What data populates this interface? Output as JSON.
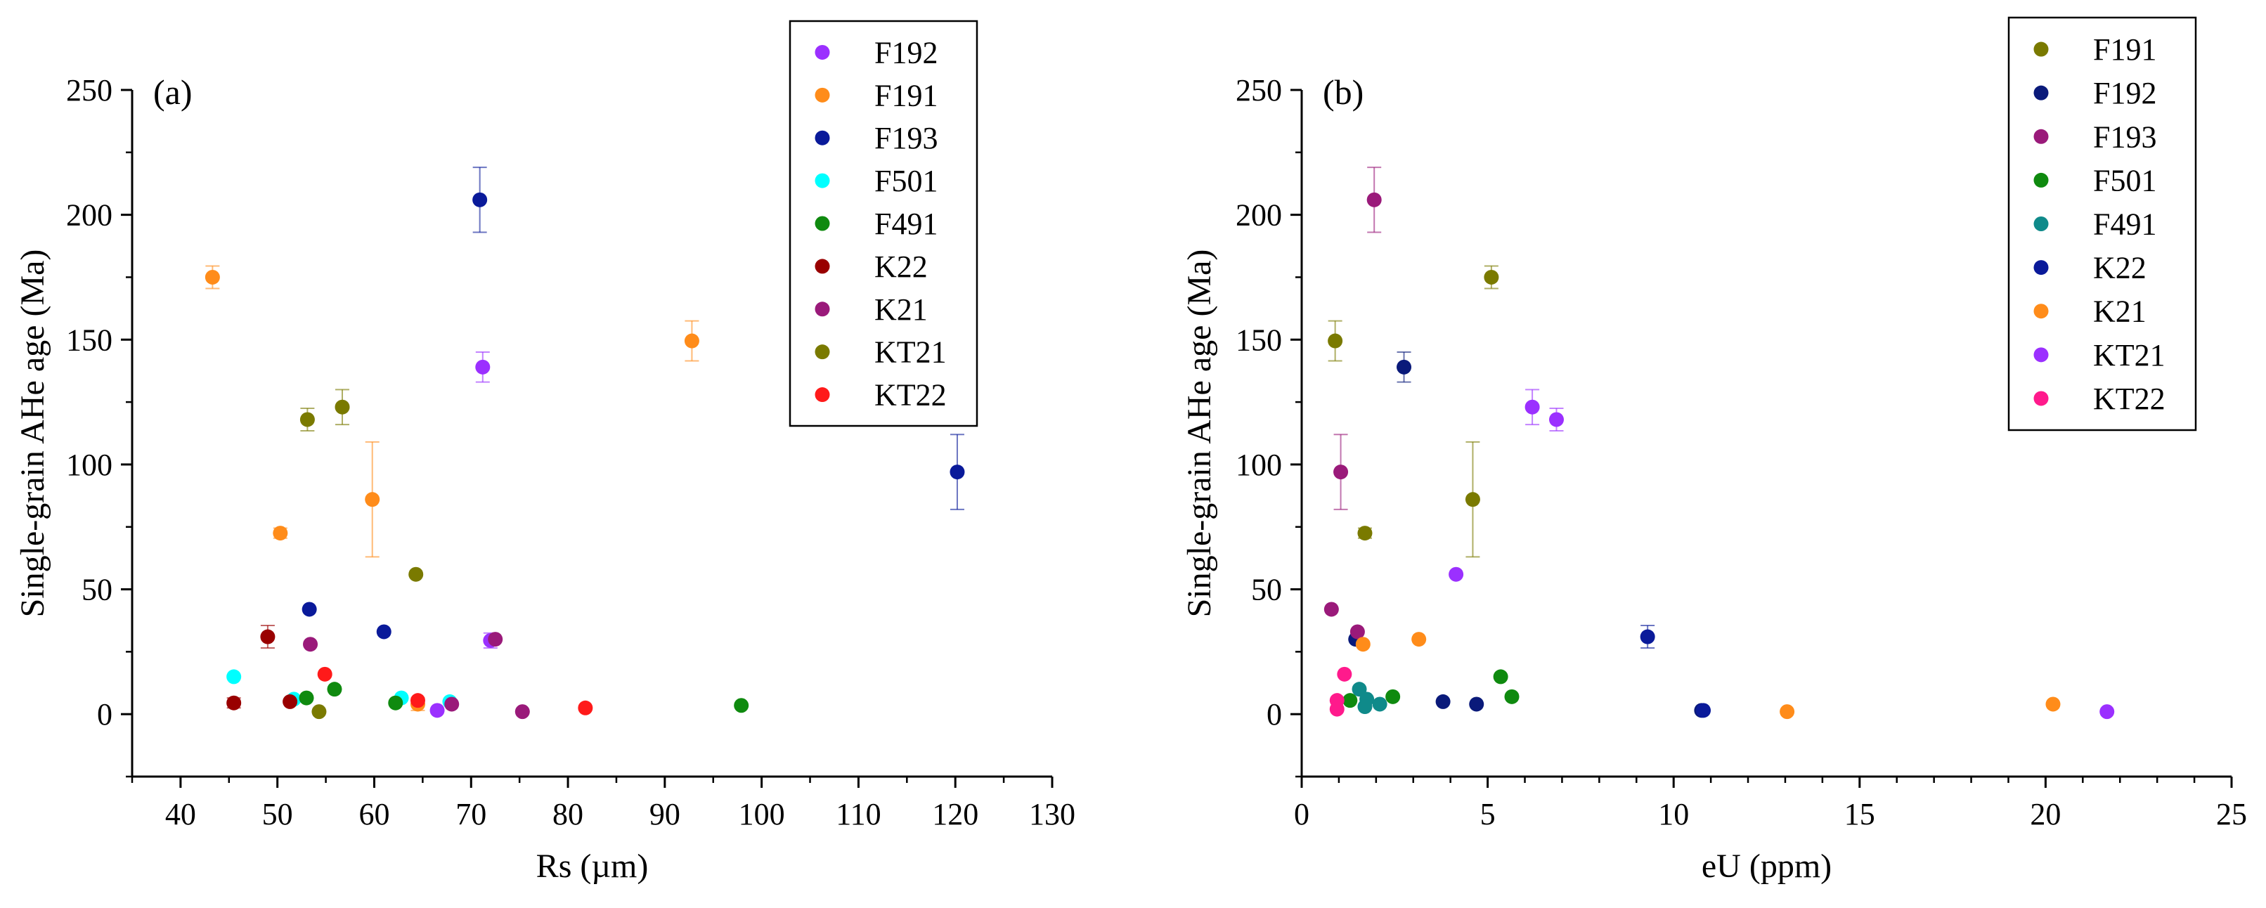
{
  "chart_data": [
    {
      "type": "scatter",
      "panel_label": "(a)",
      "xlabel": "Rs (µm)",
      "ylabel": "Single-grain AHe age (Ma)",
      "xlim": [
        35,
        130
      ],
      "ylim": [
        -25,
        250
      ],
      "xticks": [
        "40",
        "50",
        "60",
        "70",
        "80",
        "90",
        "100",
        "110",
        "120",
        "130"
      ],
      "yticks": [
        "0",
        "50",
        "100",
        "150",
        "200",
        "250"
      ],
      "legend_position": "top-right",
      "series": [
        {
          "name": "F192",
          "color": "#9b30ff",
          "points": [
            {
              "x": 71.2,
              "y": 139,
              "err": 6
            },
            {
              "x": 72.0,
              "y": 29.5,
              "err": 3
            },
            {
              "x": 66.5,
              "y": 1.5,
              "err": 0
            }
          ]
        },
        {
          "name": "F191",
          "color": "#ff8c1a",
          "points": [
            {
              "x": 43.3,
              "y": 175,
              "err": 4.5
            },
            {
              "x": 92.8,
              "y": 149.5,
              "err": 8
            },
            {
              "x": 50.3,
              "y": 72.5,
              "err": 2
            },
            {
              "x": 59.8,
              "y": 86,
              "err": 23
            },
            {
              "x": 64.5,
              "y": 4,
              "err": 2.5
            }
          ]
        },
        {
          "name": "F193",
          "color": "#0a1a9a",
          "points": [
            {
              "x": 70.9,
              "y": 206,
              "err": 13
            },
            {
              "x": 120.2,
              "y": 97,
              "err": 15
            },
            {
              "x": 53.3,
              "y": 42,
              "err": 0
            },
            {
              "x": 61.0,
              "y": 33,
              "err": 0
            }
          ]
        },
        {
          "name": "F501",
          "color": "#00ffff",
          "points": [
            {
              "x": 45.5,
              "y": 15,
              "err": 0
            },
            {
              "x": 51.7,
              "y": 6,
              "err": 0
            },
            {
              "x": 62.8,
              "y": 6.5,
              "err": 0
            },
            {
              "x": 67.8,
              "y": 5,
              "err": 0
            }
          ]
        },
        {
          "name": "F491",
          "color": "#0f8a0f",
          "points": [
            {
              "x": 53.0,
              "y": 6.5,
              "err": 0
            },
            {
              "x": 55.9,
              "y": 10,
              "err": 0
            },
            {
              "x": 62.2,
              "y": 4.5,
              "err": 0
            },
            {
              "x": 97.9,
              "y": 3.5,
              "err": 0
            }
          ]
        },
        {
          "name": "K22",
          "color": "#990000",
          "points": [
            {
              "x": 49.0,
              "y": 31,
              "err": 4.5
            },
            {
              "x": 45.5,
              "y": 4.5,
              "err": 2
            },
            {
              "x": 51.3,
              "y": 5,
              "err": 0
            }
          ]
        },
        {
          "name": "K21",
          "color": "#9a1a7a",
          "points": [
            {
              "x": 53.4,
              "y": 28,
              "err": 0
            },
            {
              "x": 72.5,
              "y": 30,
              "err": 0
            },
            {
              "x": 68.0,
              "y": 4,
              "err": 0
            },
            {
              "x": 75.3,
              "y": 1,
              "err": 0
            }
          ]
        },
        {
          "name": "KT21",
          "color": "#7a7a00",
          "points": [
            {
              "x": 53.1,
              "y": 118,
              "err": 4.5
            },
            {
              "x": 56.7,
              "y": 123,
              "err": 7
            },
            {
              "x": 64.3,
              "y": 56,
              "err": 0
            },
            {
              "x": 54.3,
              "y": 1,
              "err": 0
            }
          ]
        },
        {
          "name": "KT22",
          "color": "#ff1a1a",
          "points": [
            {
              "x": 54.9,
              "y": 16,
              "err": 0
            },
            {
              "x": 64.5,
              "y": 5.5,
              "err": 0
            },
            {
              "x": 81.8,
              "y": 2.5,
              "err": 0
            }
          ]
        }
      ]
    },
    {
      "type": "scatter",
      "panel_label": "(b)",
      "xlabel": "eU (ppm)",
      "ylabel": "Single-grain AHe age (Ma)",
      "xlim": [
        0,
        25
      ],
      "ylim": [
        -25,
        250
      ],
      "xticks": [
        "0",
        "5",
        "10",
        "15",
        "20",
        "25"
      ],
      "yticks": [
        "0",
        "50",
        "100",
        "150",
        "200",
        "250"
      ],
      "legend_position": "top-right",
      "series": [
        {
          "name": "F191",
          "color": "#7a7a00",
          "points": [
            {
              "x": 5.1,
              "y": 175,
              "err": 4.5
            },
            {
              "x": 0.9,
              "y": 149.5,
              "err": 8
            },
            {
              "x": 4.6,
              "y": 86,
              "err": 23
            },
            {
              "x": 1.7,
              "y": 72.5,
              "err": 2
            }
          ]
        },
        {
          "name": "F192",
          "color": "#0a1a7a",
          "points": [
            {
              "x": 2.75,
              "y": 139,
              "err": 6
            },
            {
              "x": 1.45,
              "y": 30,
              "err": 0
            },
            {
              "x": 3.8,
              "y": 5,
              "err": 0
            },
            {
              "x": 4.7,
              "y": 4,
              "err": 0
            },
            {
              "x": 10.75,
              "y": 1.5,
              "err": 0
            }
          ]
        },
        {
          "name": "F193",
          "color": "#9a1a7a",
          "points": [
            {
              "x": 1.95,
              "y": 206,
              "err": 13
            },
            {
              "x": 1.05,
              "y": 97,
              "err": 15
            },
            {
              "x": 0.8,
              "y": 42,
              "err": 0
            },
            {
              "x": 1.5,
              "y": 33,
              "err": 0
            }
          ]
        },
        {
          "name": "F501",
          "color": "#0f8a0f",
          "points": [
            {
              "x": 5.35,
              "y": 15,
              "err": 0
            },
            {
              "x": 5.65,
              "y": 7,
              "err": 0
            },
            {
              "x": 2.45,
              "y": 7,
              "err": 0
            },
            {
              "x": 1.3,
              "y": 5.5,
              "err": 0
            }
          ]
        },
        {
          "name": "F491",
          "color": "#0f8a8a",
          "points": [
            {
              "x": 1.55,
              "y": 10,
              "err": 0
            },
            {
              "x": 1.75,
              "y": 6,
              "err": 0
            },
            {
              "x": 1.7,
              "y": 3,
              "err": 0
            },
            {
              "x": 2.1,
              "y": 4,
              "err": 0
            }
          ]
        },
        {
          "name": "K22",
          "color": "#0a1a9a",
          "points": [
            {
              "x": 9.3,
              "y": 31,
              "err": 4.5
            },
            {
              "x": 10.8,
              "y": 1.5,
              "err": 0
            }
          ]
        },
        {
          "name": "K21",
          "color": "#ff8c1a",
          "points": [
            {
              "x": 1.65,
              "y": 28,
              "err": 0
            },
            {
              "x": 3.15,
              "y": 30,
              "err": 0
            },
            {
              "x": 13.05,
              "y": 1,
              "err": 0
            },
            {
              "x": 20.2,
              "y": 4,
              "err": 0
            }
          ]
        },
        {
          "name": "KT21",
          "color": "#9b30ff",
          "points": [
            {
              "x": 6.2,
              "y": 123,
              "err": 7
            },
            {
              "x": 6.85,
              "y": 118,
              "err": 4.5
            },
            {
              "x": 4.15,
              "y": 56,
              "err": 0
            },
            {
              "x": 21.65,
              "y": 1,
              "err": 0
            }
          ]
        },
        {
          "name": "KT22",
          "color": "#ff1a8c",
          "points": [
            {
              "x": 1.15,
              "y": 16,
              "err": 0
            },
            {
              "x": 0.95,
              "y": 5.5,
              "err": 0
            },
            {
              "x": 0.95,
              "y": 2,
              "err": 0
            }
          ]
        }
      ]
    }
  ]
}
